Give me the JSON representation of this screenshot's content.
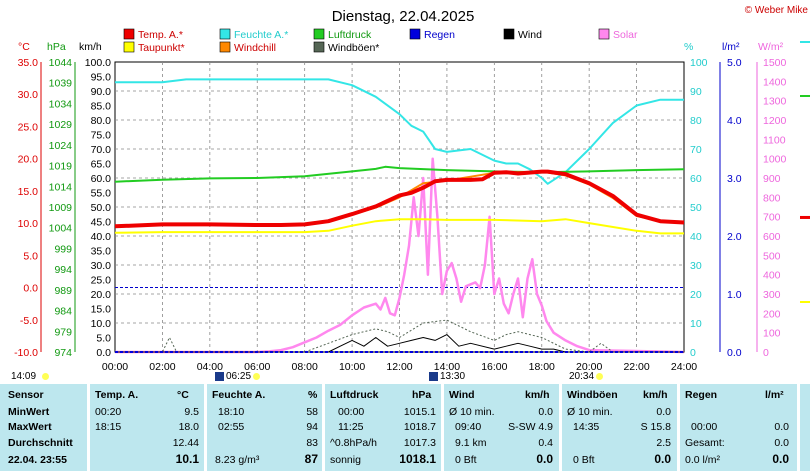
{
  "title": "Dienstag, 22.04.2025",
  "credit": "© Weber Mike",
  "colors": {
    "temp": "#ee0000",
    "dewpoint": "#ffff00",
    "humidity": "#33e6e6",
    "windchill": "#ff8800",
    "pressure": "#22cc22",
    "gusts": "#556655",
    "rain": "#0000dd",
    "wind": "#000000",
    "solar": "#ff88ee"
  },
  "legend": [
    {
      "key": "temp",
      "label": "Temp. A.*",
      "color": "#ee0000"
    },
    {
      "key": "humidity",
      "label": "Feuchte A.*",
      "color": "#33e6e6"
    },
    {
      "key": "pressure",
      "label": "Luftdruck",
      "color": "#22cc22"
    },
    {
      "key": "rain",
      "label": "Regen",
      "color": "#0000dd"
    },
    {
      "key": "wind",
      "label": "Wind",
      "color": "#000000"
    },
    {
      "key": "solar",
      "label": "Solar",
      "color": "#ff88ee"
    },
    {
      "key": "dewpoint",
      "label": "Taupunkt*",
      "color": "#ffff00"
    },
    {
      "key": "windchill",
      "label": "Windchill",
      "color": "#ff8800"
    },
    {
      "key": "gusts",
      "label": "Windböen*",
      "color": "#556655"
    }
  ],
  "units": {
    "temp": "°C",
    "pressure": "hPa",
    "wind": "km/h",
    "humidity": "%",
    "rain": "l/m²",
    "solar": "W/m²"
  },
  "sun": {
    "rise_icon_time": "06:25",
    "set_icon_time": "20:34",
    "left_time": "14:09",
    "marker_time": "13:30"
  },
  "table": {
    "headers": [
      "Sensor",
      "Temp. A.",
      "°C",
      "Feuchte A.",
      "%",
      "Luftdruck",
      "hPa",
      "Wind",
      "km/h",
      "Windböen",
      "km/h",
      "Regen",
      "l/m²"
    ],
    "rows": [
      {
        "label": "MinWert",
        "temp_time": "00:20",
        "temp_val": "9.5",
        "hum_time": "18:10",
        "hum_val": "58",
        "press_time": "00:00",
        "press_val": "1015.1",
        "wind_time": "Ø 10 min.",
        "wind_val": "0.0",
        "gust_time": "Ø 10 min.",
        "gust_val": "0.0",
        "rain_time": "",
        "rain_val": ""
      },
      {
        "label": "MaxWert",
        "temp_time": "18:15",
        "temp_val": "18.0",
        "hum_time": "02:55",
        "hum_val": "94",
        "press_time": "11:25",
        "press_val": "1018.7",
        "wind_time": "09:40",
        "wind_dir": "S-SW 4.9",
        "gust_time": "14:35",
        "gust_val": "S 15.8",
        "rain_time": "00:00",
        "rain_val": "0.0"
      },
      {
        "label": "Durchschnitt",
        "temp_time": "",
        "temp_val": "12.44",
        "hum_time": "",
        "hum_val": "83",
        "press_time": "^0.8hPa/h",
        "press_val": "1017.3",
        "wind_time": "9.1 km",
        "wind_val": "0.4",
        "gust_time": "",
        "gust_val": "2.5",
        "rain_time": "Gesamt:",
        "rain_val": "0.0"
      },
      {
        "label": "22.04. 23:55",
        "temp_time": "",
        "temp_val": "10.1",
        "hum_time": "8.23 g/m³",
        "hum_val": "87",
        "press_time": "sonnig",
        "press_val": "1018.1",
        "wind_time": "0 Bft",
        "wind_val": "0.0",
        "gust_time": "0 Bft",
        "gust_val": "0.0",
        "rain_time": "0.0 l/m²",
        "rain_val": "0.0"
      }
    ]
  },
  "chart_data": {
    "type": "line",
    "title": "Dienstag, 22.04.2025",
    "x_unit": "time of day (hours)",
    "xlim": [
      0,
      24
    ],
    "x_ticks": [
      "00:00",
      "02:00",
      "04:00",
      "06:00",
      "08:00",
      "10:00",
      "12:00",
      "14:00",
      "16:00",
      "18:00",
      "20:00",
      "22:00",
      "24:00"
    ],
    "axes": {
      "temp": {
        "label": "°C",
        "lim": [
          -10,
          35
        ],
        "ticks": [
          "35.0",
          "30.0",
          "25.0",
          "20.0",
          "15.0",
          "10.0",
          "5.0",
          "0.0",
          "-5.0",
          "-10.0"
        ]
      },
      "pressure": {
        "label": "hPa",
        "lim": [
          974,
          1044
        ],
        "ticks": [
          "1044",
          "1039",
          "1034",
          "1029",
          "1024",
          "1019",
          "1014",
          "1009",
          "1004",
          "999",
          "994",
          "989",
          "984",
          "979",
          "974"
        ]
      },
      "wind": {
        "label": "km/h",
        "lim": [
          0,
          100
        ],
        "ticks": [
          "100.0",
          "95.0",
          "90.0",
          "85.0",
          "80.0",
          "75.0",
          "70.0",
          "65.0",
          "60.0",
          "55.0",
          "50.0",
          "45.0",
          "40.0",
          "35.0",
          "30.0",
          "25.0",
          "20.0",
          "15.0",
          "10.0",
          "5.0",
          "0.0"
        ]
      },
      "humidity": {
        "label": "%",
        "lim": [
          0,
          100
        ],
        "ticks": [
          "100",
          "90",
          "80",
          "70",
          "60",
          "50",
          "40",
          "30",
          "20",
          "10",
          "0"
        ]
      },
      "rain": {
        "label": "l/m²",
        "lim": [
          0,
          5
        ],
        "ticks": [
          "5.0",
          "4.0",
          "3.0",
          "2.0",
          "1.0",
          "0.0"
        ]
      },
      "solar": {
        "label": "W/m²",
        "lim": [
          0,
          1500
        ],
        "ticks": [
          "1500",
          "1400",
          "1300",
          "1200",
          "1100",
          "1000",
          "900",
          "800",
          "700",
          "600",
          "500",
          "400",
          "300",
          "200",
          "100",
          "0"
        ]
      }
    },
    "series": [
      {
        "name": "Temp. A.*",
        "axis": "temp",
        "x": [
          0,
          2,
          4,
          6,
          7,
          8,
          9,
          10,
          11,
          12,
          12.5,
          13,
          13.5,
          14,
          15,
          15.5,
          16,
          16.5,
          17,
          18,
          18.25,
          19,
          20,
          21,
          22,
          23,
          24
        ],
        "y": [
          9.5,
          9.8,
          9.8,
          9.7,
          9.7,
          9.8,
          10.3,
          11.4,
          12.6,
          14.3,
          14.7,
          15.5,
          16.5,
          16.7,
          16.7,
          16.8,
          17.8,
          17.9,
          17.7,
          18.0,
          18.0,
          17.6,
          16.2,
          14.2,
          11.3,
          10.3,
          10.1
        ]
      },
      {
        "name": "Taupunkt*",
        "axis": "temp",
        "x": [
          0,
          2,
          4,
          6,
          8,
          9,
          10,
          11,
          12,
          13,
          14,
          16,
          18,
          19,
          20,
          22,
          23,
          24
        ],
        "y": [
          8.5,
          8.6,
          8.6,
          8.6,
          8.6,
          8.8,
          9.6,
          10.3,
          10.6,
          10.6,
          10.5,
          10.5,
          10.3,
          10.6,
          10.0,
          8.8,
          8.4,
          8.4
        ]
      },
      {
        "name": "Feuchte A.*",
        "axis": "humidity",
        "x": [
          0,
          1,
          2,
          3,
          4,
          6,
          8,
          9,
          10,
          11,
          12,
          12.5,
          13,
          13.5,
          14,
          15,
          16,
          16.5,
          17,
          17.5,
          18,
          18.25,
          19,
          20,
          21,
          22,
          23,
          24
        ],
        "y": [
          93,
          93,
          93,
          94,
          94,
          94,
          94,
          94,
          92,
          88,
          82,
          78,
          76,
          70,
          69,
          70,
          66,
          65,
          65,
          63,
          60,
          58,
          62,
          70,
          79,
          85,
          87,
          87
        ]
      },
      {
        "name": "Luftdruck",
        "axis": "pressure",
        "x": [
          0,
          2,
          4,
          6,
          8,
          10,
          11,
          11.4,
          12,
          14,
          16,
          18,
          20,
          22,
          24
        ],
        "y": [
          1015.1,
          1015.6,
          1015.9,
          1016.0,
          1016.4,
          1017.6,
          1018.2,
          1018.7,
          1018.4,
          1017.9,
          1017.6,
          1017.4,
          1017.6,
          1017.9,
          1018.1
        ]
      },
      {
        "name": "Windchill",
        "axis": "temp",
        "x": [
          0,
          2,
          4,
          6,
          8,
          9,
          10,
          11,
          12,
          13,
          14,
          16,
          18,
          19,
          20,
          21,
          22,
          23,
          24
        ],
        "y": [
          9.5,
          9.8,
          9.8,
          9.7,
          9.8,
          10.3,
          11.3,
          12.4,
          14.0,
          16.2,
          16.6,
          17.8,
          18.0,
          17.4,
          16.0,
          13.9,
          11.1,
          10.3,
          10.1
        ]
      },
      {
        "name": "Solar",
        "axis": "solar",
        "x": [
          0,
          6,
          6.5,
          7,
          7.5,
          8,
          8.5,
          9,
          9.5,
          10,
          10.5,
          11,
          11.2,
          11.4,
          11.6,
          11.8,
          12,
          12.2,
          12.4,
          12.6,
          12.8,
          13,
          13.2,
          13.4,
          13.6,
          13.8,
          14,
          14.2,
          14.4,
          14.6,
          14.8,
          15,
          15.2,
          15.4,
          15.6,
          15.8,
          16,
          16.2,
          16.4,
          16.6,
          16.8,
          17,
          17.2,
          17.4,
          17.6,
          17.8,
          18,
          18.2,
          18.5,
          19,
          19.5,
          20,
          24
        ],
        "y": [
          0,
          0,
          3,
          10,
          25,
          50,
          75,
          110,
          140,
          190,
          230,
          250,
          220,
          280,
          200,
          190,
          280,
          400,
          550,
          800,
          600,
          900,
          400,
          1000,
          700,
          300,
          420,
          460,
          380,
          260,
          340,
          350,
          360,
          330,
          450,
          700,
          300,
          380,
          250,
          200,
          300,
          380,
          180,
          380,
          480,
          300,
          240,
          160,
          100,
          60,
          30,
          10,
          0
        ]
      },
      {
        "name": "Wind",
        "axis": "wind",
        "x": [
          0,
          9,
          9.5,
          10,
          10.5,
          11,
          11.5,
          12,
          12.5,
          13,
          13.5,
          14,
          14.5,
          15,
          16,
          16.5,
          17,
          17.5,
          18,
          18.5,
          19,
          24
        ],
        "y": [
          0,
          0,
          2,
          4,
          2,
          5,
          2,
          3,
          4,
          5,
          4,
          6,
          2,
          3,
          1,
          2,
          3,
          2,
          1,
          1,
          0,
          0
        ]
      },
      {
        "name": "Windböen*",
        "axis": "wind",
        "x": [
          0,
          2,
          2.3,
          2.6,
          3,
          7,
          8,
          9,
          10,
          11,
          11.5,
          12,
          13,
          14,
          15,
          16,
          16.5,
          17,
          17.5,
          18,
          18.5,
          19,
          20,
          20.5,
          21,
          24
        ],
        "y": [
          0,
          0,
          5,
          0,
          0,
          0,
          0,
          3,
          6,
          8,
          7,
          5,
          10,
          11,
          7,
          4,
          6,
          7,
          6,
          5,
          3,
          1,
          0,
          3,
          0,
          0
        ]
      },
      {
        "name": "Regen",
        "axis": "rain",
        "x": [
          0,
          24
        ],
        "y": [
          0,
          0
        ]
      }
    ]
  }
}
